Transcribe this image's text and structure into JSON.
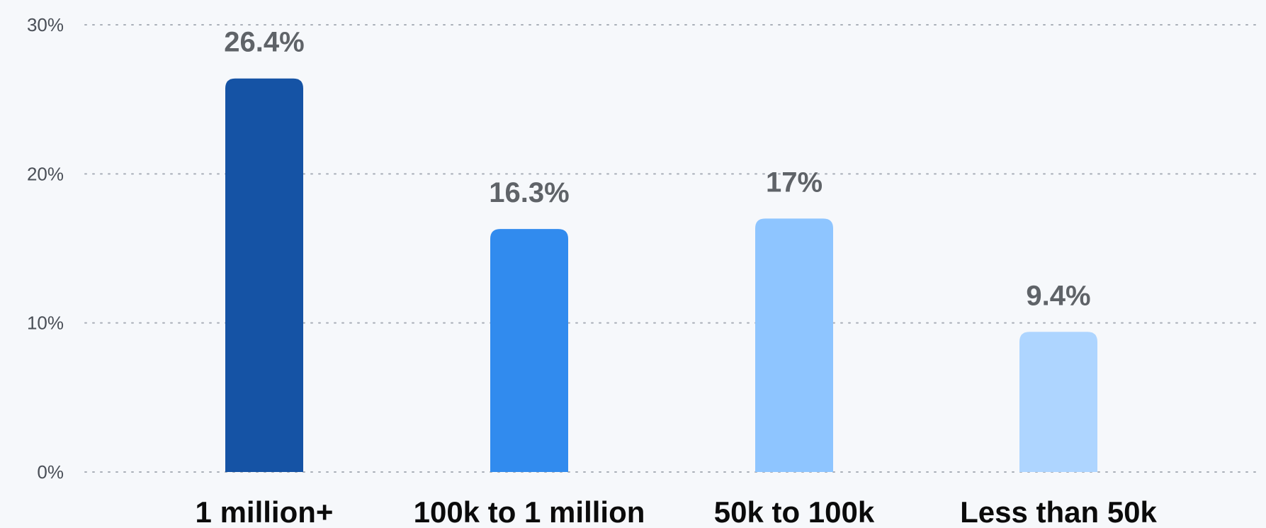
{
  "chart_data": {
    "type": "bar",
    "categories": [
      "1 million+",
      "100k to 1 million",
      "50k to 100k",
      "Less than 50k"
    ],
    "values": [
      26.4,
      16.3,
      17,
      9.4
    ],
    "value_labels": [
      "26.4%",
      "16.3%",
      "17%",
      "9.4%"
    ],
    "yticks": [
      0,
      10,
      20,
      30
    ],
    "ytick_labels": [
      "0%",
      "10%",
      "20%",
      "30%"
    ],
    "ylim": [
      0,
      30
    ],
    "grid": true,
    "legend": "none",
    "colors": [
      "#1553a5",
      "#318bee",
      "#8ec5ff",
      "#aed5ff"
    ]
  }
}
